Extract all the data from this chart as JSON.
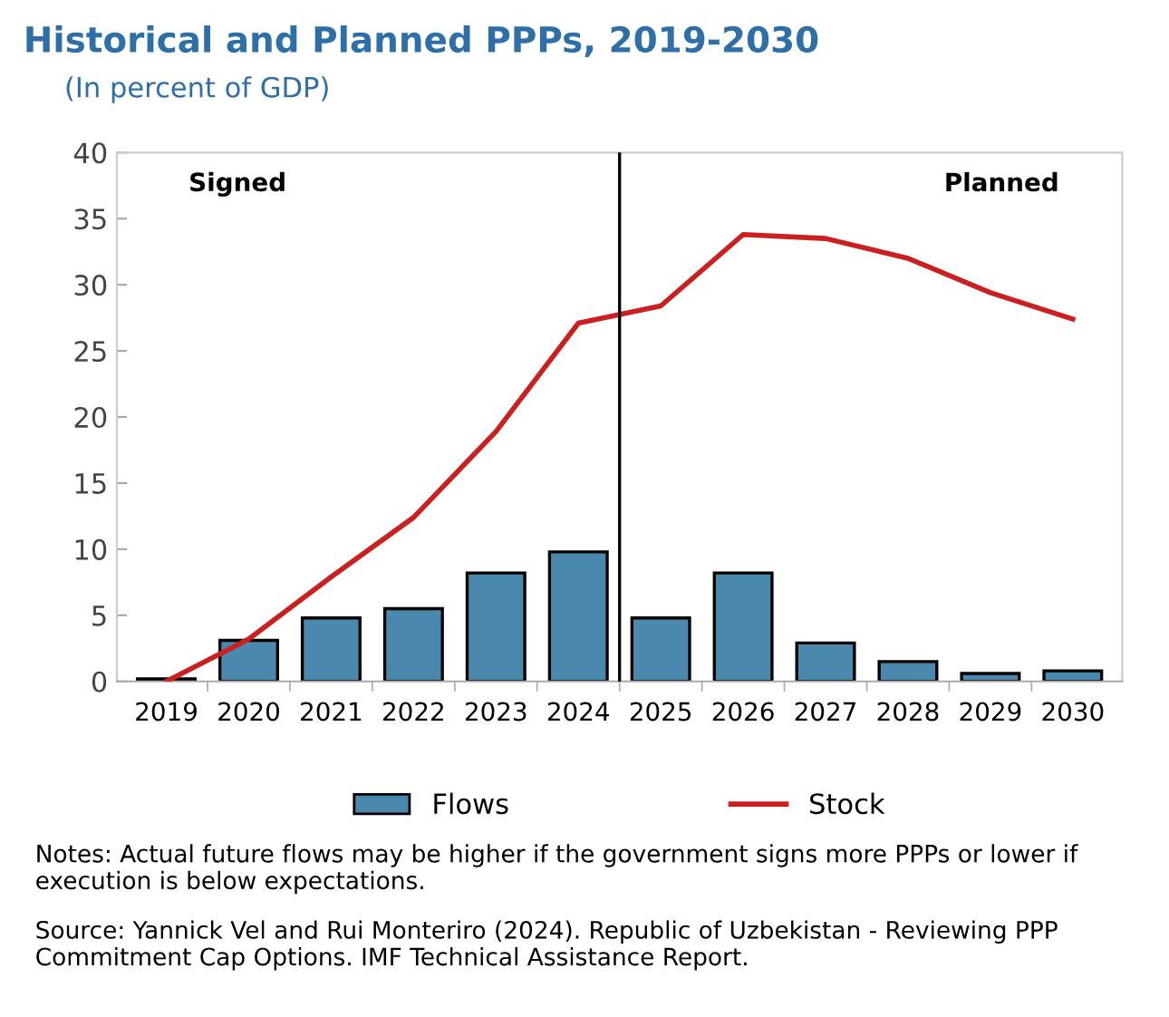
{
  "chart_data": {
    "type": "bar",
    "title": "Historical and Planned PPPs, 2019-2030",
    "subtitle": "(In percent of GDP)",
    "categories": [
      "2019",
      "2020",
      "2021",
      "2022",
      "2023",
      "2024",
      "2025",
      "2026",
      "2027",
      "2028",
      "2029",
      "2030"
    ],
    "series": [
      {
        "name": "Flows",
        "color": "#4a88ad",
        "values": [
          0.2,
          3.1,
          4.8,
          5.5,
          8.2,
          9.8,
          4.8,
          8.2,
          2.9,
          1.5,
          0.6,
          0.8
        ]
      },
      {
        "name": "Stock",
        "type": "line",
        "color": "#cc1f1f",
        "values": [
          0.0,
          3.2,
          7.9,
          12.4,
          18.9,
          27.1,
          28.4,
          33.8,
          33.5,
          32.0,
          29.4,
          27.4
        ]
      }
    ],
    "ylim": [
      0,
      40
    ],
    "yticks": [
      0,
      5,
      10,
      15,
      20,
      25,
      30,
      35,
      40
    ],
    "grid": false,
    "legend": "bottom",
    "annotations": [
      "Signed",
      "Planned",
      "Notes: Actual future flows may be higher if the government signs more PPPs or lower if execution is below expectations.",
      "Source: Yannick Vel and Rui Monteriro (2024). Republic of Uzbekistan - Reviewing PPP Commitment Cap Options. IMF Technical Assistance Report."
    ]
  }
}
